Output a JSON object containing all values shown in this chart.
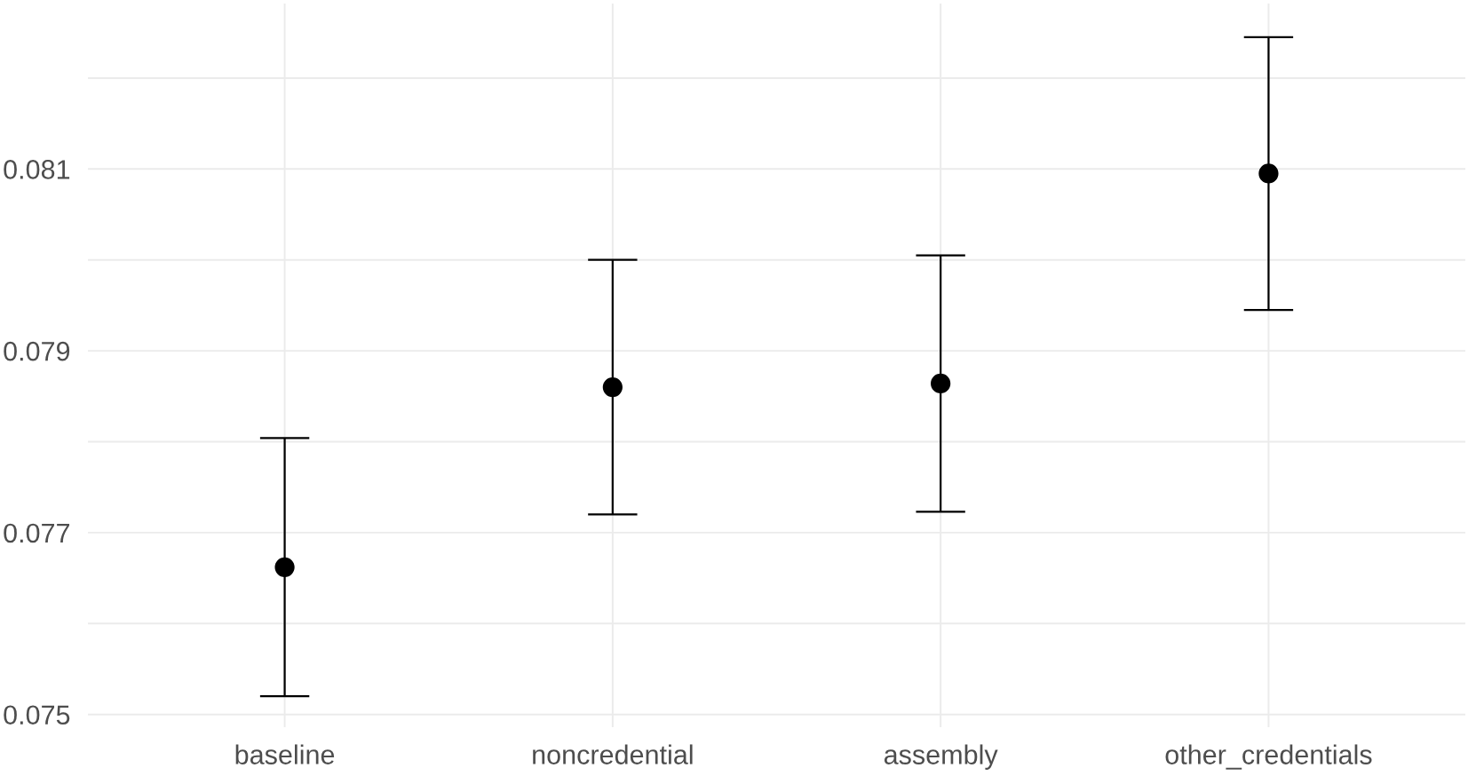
{
  "chart_data": {
    "type": "scatter",
    "categories": [
      "baseline",
      "noncredential",
      "assembly",
      "other_credentials"
    ],
    "values": [
      0.07662,
      0.0786,
      0.07864,
      0.08095
    ],
    "errors": [
      0.00142,
      0.0014,
      0.00141,
      0.0015
    ],
    "color": "#000000",
    "marker": "circle",
    "ylim": [
      0.07486,
      0.08282
    ],
    "yticks": [
      0.075,
      {
        "value": 0.076,
        "label": null
      },
      0.077,
      {
        "value": 0.078,
        "label": null
      },
      0.079,
      {
        "value": 0.08,
        "label": null
      },
      0.081,
      {
        "value": 0.082,
        "label": null
      }
    ],
    "grid": true
  }
}
